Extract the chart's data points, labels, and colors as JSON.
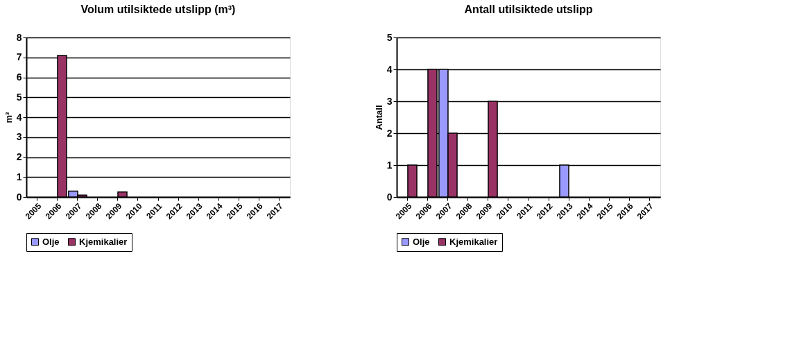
{
  "chart_data": [
    {
      "type": "bar",
      "title": "Volum utilsiktede utslipp (m³)",
      "ylabel": "m³",
      "categories": [
        "2005",
        "2006",
        "2007",
        "2008",
        "2009",
        "2010",
        "2011",
        "2012",
        "2013",
        "2014",
        "2015",
        "2016",
        "2017"
      ],
      "series": [
        {
          "name": "Olje",
          "color": "#9999ff",
          "values": [
            0,
            0,
            0.3,
            0,
            0,
            0,
            0,
            0,
            0,
            0,
            0,
            0,
            0
          ]
        },
        {
          "name": "Kjemikalier",
          "color": "#993366",
          "values": [
            0,
            7.1,
            0.1,
            0,
            0.25,
            0,
            0,
            0,
            0,
            0,
            0,
            0,
            0
          ]
        }
      ],
      "ylim": [
        0,
        8
      ],
      "yticks": [
        0,
        1,
        2,
        3,
        4,
        5,
        6,
        7,
        8
      ],
      "grid": "y",
      "legend": "bottom"
    },
    {
      "type": "bar",
      "title": "Antall utilsiktede utslipp",
      "ylabel": "Antall",
      "categories": [
        "2005",
        "2006",
        "2007",
        "2008",
        "2009",
        "2010",
        "2011",
        "2012",
        "2013",
        "2014",
        "2015",
        "2016",
        "2017"
      ],
      "series": [
        {
          "name": "Olje",
          "color": "#9999ff",
          "values": [
            0,
            0,
            4,
            0,
            0,
            0,
            0,
            0,
            1,
            0,
            0,
            0,
            0
          ]
        },
        {
          "name": "Kjemikalier",
          "color": "#993366",
          "values": [
            1,
            4,
            2,
            0,
            3,
            0,
            0,
            0,
            0,
            0,
            0,
            0,
            0
          ]
        }
      ],
      "ylim": [
        0,
        5
      ],
      "yticks": [
        0,
        1,
        2,
        3,
        4,
        5
      ],
      "grid": "y",
      "legend": "bottom"
    }
  ]
}
